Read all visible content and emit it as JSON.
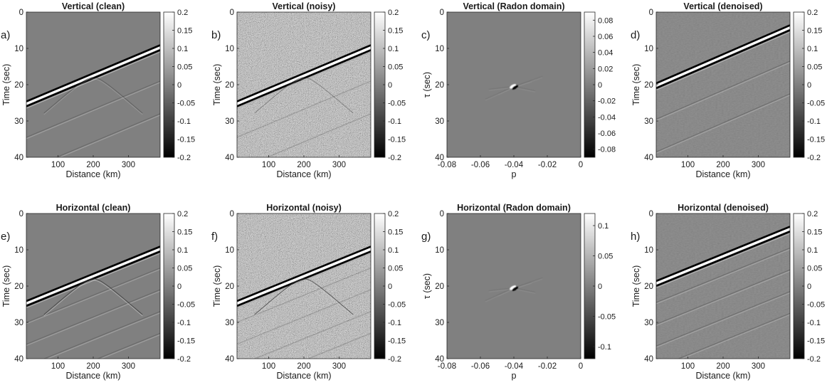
{
  "figure": {
    "panels": [
      {
        "label": "a)",
        "title": "Vertical (clean)",
        "kind": "seis",
        "variant": "clean",
        "hor": false
      },
      {
        "label": "b)",
        "title": "Vertical (noisy)",
        "kind": "seis",
        "variant": "noisy",
        "hor": false
      },
      {
        "label": "c)",
        "title": "Vertical (Radon domain)",
        "kind": "radon",
        "variant": "radon",
        "hor": false
      },
      {
        "label": "d)",
        "title": "Vertical (denoised)",
        "kind": "seis",
        "variant": "denoised",
        "hor": false
      },
      {
        "label": "e)",
        "title": "Horizontal (clean)",
        "kind": "seis",
        "variant": "clean",
        "hor": true
      },
      {
        "label": "f)",
        "title": "Horizontal (noisy)",
        "kind": "seis",
        "variant": "noisy",
        "hor": true
      },
      {
        "label": "g)",
        "title": "Horizontal (Radon domain)",
        "kind": "radon",
        "variant": "radon",
        "hor": true
      },
      {
        "label": "h)",
        "title": "Horizontal (denoised)",
        "kind": "seis",
        "variant": "denoised",
        "hor": true
      }
    ]
  },
  "chart_data": [
    {
      "type": "heatmap",
      "title": "Vertical (clean)",
      "xlabel": "Distance (km)",
      "ylabel": "Time (sec)",
      "xlim": [
        10,
        390
      ],
      "ylim": [
        0,
        40
      ],
      "y_reversed": true,
      "xticks": [
        100,
        200,
        300
      ],
      "yticks": [
        0,
        10,
        20,
        30,
        40
      ],
      "colormap": "gray",
      "clim": [
        -0.2,
        0.2
      ],
      "cbticks": [
        "0.2",
        "0.15",
        "0.1",
        "0.05",
        "0",
        "-0.05",
        "-0.1",
        "-0.15",
        "-0.2"
      ]
    },
    {
      "type": "heatmap",
      "title": "Vertical (noisy)",
      "xlabel": "Distance (km)",
      "ylabel": "Time (sec)",
      "xlim": [
        10,
        390
      ],
      "ylim": [
        0,
        40
      ],
      "y_reversed": true,
      "xticks": [
        100,
        200,
        300
      ],
      "yticks": [
        0,
        10,
        20,
        30,
        40
      ],
      "colormap": "gray",
      "clim": [
        -0.2,
        0.2
      ],
      "cbticks": [
        "0.2",
        "0.15",
        "0.1",
        "0.05",
        "0",
        "-0.05",
        "-0.1",
        "-0.15",
        "-0.2"
      ]
    },
    {
      "type": "heatmap",
      "title": "Vertical (Radon domain)",
      "xlabel": "p",
      "ylabel": "τ (sec)",
      "xlim": [
        -0.08,
        0
      ],
      "ylim": [
        0,
        40
      ],
      "y_reversed": true,
      "xticks": [
        "-0.08",
        "-0.06",
        "-0.04",
        "-0.02",
        "0"
      ],
      "yticks": [
        0,
        10,
        20,
        30,
        40
      ],
      "colormap": "gray",
      "clim": [
        -0.09,
        0.09
      ],
      "cbticks": [
        "0.08",
        "0.06",
        "0.04",
        "0.02",
        "0",
        "-0.02",
        "-0.04",
        "-0.06",
        "-0.08"
      ]
    },
    {
      "type": "heatmap",
      "title": "Vertical (denoised)",
      "xlabel": "Distance (km)",
      "ylabel": "Time (sec)",
      "xlim": [
        10,
        390
      ],
      "ylim": [
        0,
        40
      ],
      "y_reversed": true,
      "xticks": [
        100,
        200,
        300
      ],
      "yticks": [
        0,
        10,
        20,
        30,
        40
      ],
      "colormap": "gray",
      "clim": [
        -0.2,
        0.2
      ],
      "cbticks": [
        "0.2",
        "0.15",
        "0.1",
        "0.05",
        "0",
        "-0.05",
        "-0.1",
        "-0.15",
        "-0.2"
      ]
    },
    {
      "type": "heatmap",
      "title": "Horizontal (clean)",
      "xlabel": "Distance (km)",
      "ylabel": "Time (sec)",
      "xlim": [
        10,
        390
      ],
      "ylim": [
        0,
        40
      ],
      "y_reversed": true,
      "xticks": [
        100,
        200,
        300
      ],
      "yticks": [
        0,
        10,
        20,
        30,
        40
      ],
      "colormap": "gray",
      "clim": [
        -0.2,
        0.2
      ],
      "cbticks": [
        "0.2",
        "0.15",
        "0.1",
        "0.05",
        "0",
        "-0.05",
        "-0.1",
        "-0.15",
        "-0.2"
      ]
    },
    {
      "type": "heatmap",
      "title": "Horizontal (noisy)",
      "xlabel": "Distance (km)",
      "ylabel": "Time (sec)",
      "xlim": [
        10,
        390
      ],
      "ylim": [
        0,
        40
      ],
      "y_reversed": true,
      "xticks": [
        100,
        200,
        300
      ],
      "yticks": [
        0,
        10,
        20,
        30,
        40
      ],
      "colormap": "gray",
      "clim": [
        -0.2,
        0.2
      ],
      "cbticks": [
        "0.2",
        "0.15",
        "0.1",
        "0.05",
        "0",
        "-0.05",
        "-0.1",
        "-0.15",
        "-0.2"
      ]
    },
    {
      "type": "heatmap",
      "title": "Horizontal (Radon domain)",
      "xlabel": "p",
      "ylabel": "τ (sec)",
      "xlim": [
        -0.08,
        0
      ],
      "ylim": [
        0,
        40
      ],
      "y_reversed": true,
      "xticks": [
        "-0.08",
        "-0.06",
        "-0.04",
        "-0.02",
        "0"
      ],
      "yticks": [
        0,
        10,
        20,
        30,
        40
      ],
      "colormap": "gray",
      "clim": [
        -0.12,
        0.12
      ],
      "cbticks": [
        "0.1",
        "0.05",
        "0",
        "-0.05",
        "-0.1"
      ]
    },
    {
      "type": "heatmap",
      "title": "Horizontal (denoised)",
      "xlabel": "Distance (km)",
      "ylabel": "Time (sec)",
      "xlim": [
        10,
        390
      ],
      "ylim": [
        0,
        40
      ],
      "y_reversed": true,
      "xticks": [
        100,
        200,
        300
      ],
      "yticks": [
        0,
        10,
        20,
        30,
        40
      ],
      "colormap": "gray",
      "clim": [
        -0.2,
        0.2
      ],
      "cbticks": [
        "0.2",
        "0.15",
        "0.1",
        "0.05",
        "0",
        "-0.05",
        "-0.1",
        "-0.15",
        "-0.2"
      ]
    }
  ]
}
